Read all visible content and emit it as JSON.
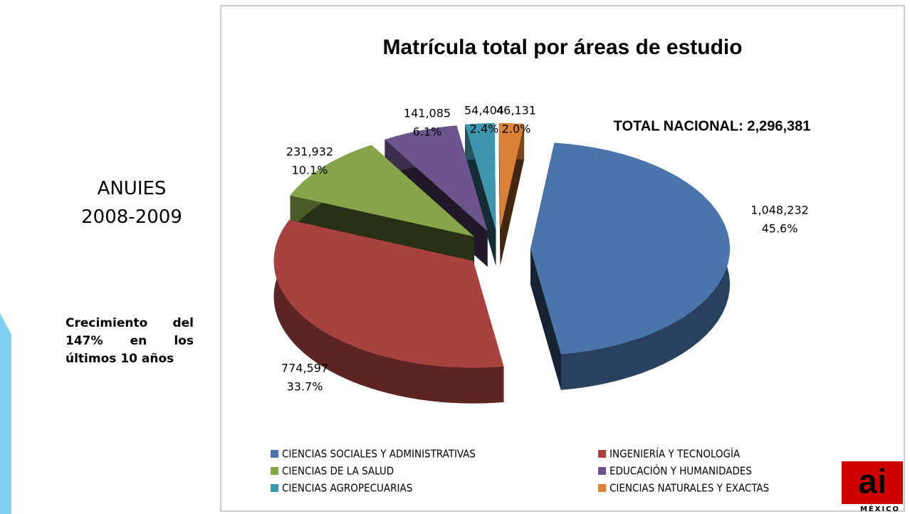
{
  "slide": {
    "org": "ANUIES",
    "period": "2008-2009",
    "note": "Crecimiento del 147% en los últimos 10 años",
    "logo": "ai",
    "logo_sub": "MÉXICO"
  },
  "chart_data": {
    "type": "pie",
    "title": "Matrícula total por áreas de estudio",
    "annotation": "TOTAL NACIONAL: 2,296,381",
    "categories": [
      "CIENCIAS SOCIALES Y ADMINISTRATIVAS",
      "INGENIERÍA Y TECNOLOGÍA",
      "CIENCIAS DE LA SALUD",
      "EDUCACIÓN Y HUMANIDADES",
      "CIENCIAS AGROPECUARIAS",
      "CIENCIAS NATURALES Y EXACTAS"
    ],
    "values": [
      1048232,
      774597,
      231932,
      141085,
      54404,
      46131
    ],
    "value_labels": [
      "1,048,232",
      "774,597",
      "231,932",
      "141,085",
      "54,404",
      "46,131"
    ],
    "percent_labels": [
      "45.6%",
      "33.7%",
      "10.1%",
      "6.1%",
      "2.4%",
      "2.0%"
    ],
    "colors": [
      "#4a74aa",
      "#a8423f",
      "#86a44a",
      "#6e548d",
      "#3d96ae",
      "#da8137"
    ]
  }
}
